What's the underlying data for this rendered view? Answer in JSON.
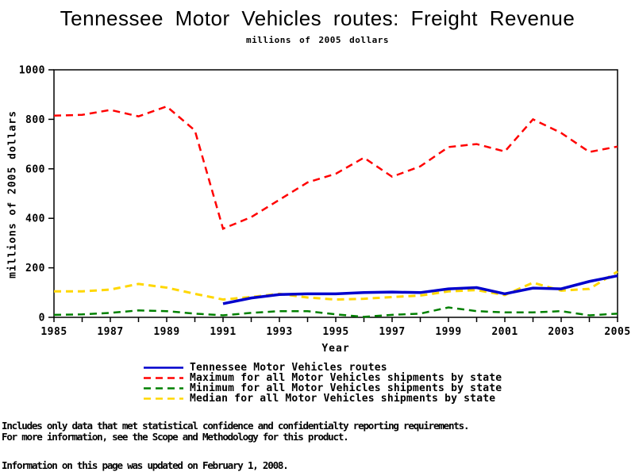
{
  "header": {
    "title": "Tennessee Motor Vehicles routes: Freight Revenue",
    "subtitle": "millions of 2005 dollars"
  },
  "chart_data": {
    "type": "line",
    "x": [
      1985,
      1986,
      1987,
      1988,
      1989,
      1990,
      1991,
      1992,
      1993,
      1994,
      1995,
      1996,
      1997,
      1998,
      1999,
      2000,
      2001,
      2002,
      2003,
      2004,
      2005
    ],
    "xtick_labels": [
      1985,
      1987,
      1989,
      1991,
      1993,
      1995,
      1997,
      1999,
      2001,
      2003,
      2005
    ],
    "yticks": [
      0,
      200,
      400,
      600,
      800,
      1000
    ],
    "ylim": [
      0,
      1000
    ],
    "xlabel": "Year",
    "ylabel": "millions of 2005 dollars",
    "grid": "off",
    "legend_position": "bottom",
    "series": [
      {
        "name": "Tennessee Motor Vehicles routes",
        "color": "#0000CC",
        "style": "solid",
        "width": 3.5,
        "x_start": 1991,
        "values": [
          55,
          78,
          92,
          95,
          95,
          100,
          102,
          100,
          115,
          120,
          95,
          118,
          115,
          145,
          168
        ]
      },
      {
        "name": "Maximum for all Motor Vehicles shipments by state",
        "color": "#FF0000",
        "style": "dashed",
        "width": 2.5,
        "x_start": 1985,
        "values": [
          815,
          818,
          838,
          812,
          852,
          755,
          358,
          405,
          475,
          545,
          580,
          645,
          568,
          610,
          688,
          700,
          670,
          800,
          745,
          668,
          690
        ]
      },
      {
        "name": "Minimum for all Motor Vehicles shipments by state",
        "color": "#008000",
        "style": "dashed",
        "width": 2.5,
        "x_start": 1985,
        "values": [
          10,
          12,
          18,
          28,
          25,
          15,
          8,
          18,
          25,
          25,
          12,
          2,
          10,
          15,
          40,
          25,
          20,
          20,
          25,
          8,
          15
        ]
      },
      {
        "name": "Median for all Motor Vehicles shipments by state",
        "color": "#FFD700",
        "style": "dashed",
        "width": 3,
        "x_start": 1985,
        "values": [
          105,
          105,
          112,
          135,
          120,
          95,
          72,
          82,
          95,
          80,
          72,
          75,
          82,
          88,
          105,
          110,
          90,
          140,
          108,
          115,
          185
        ]
      }
    ]
  },
  "footer": {
    "line1": "Includes only data that met statistical confidence and confidentialty reporting requirements.",
    "line2": "For more information, see the Scope and Methodology for this product.",
    "updated": "Information on this page was updated on February 1, 2008."
  }
}
